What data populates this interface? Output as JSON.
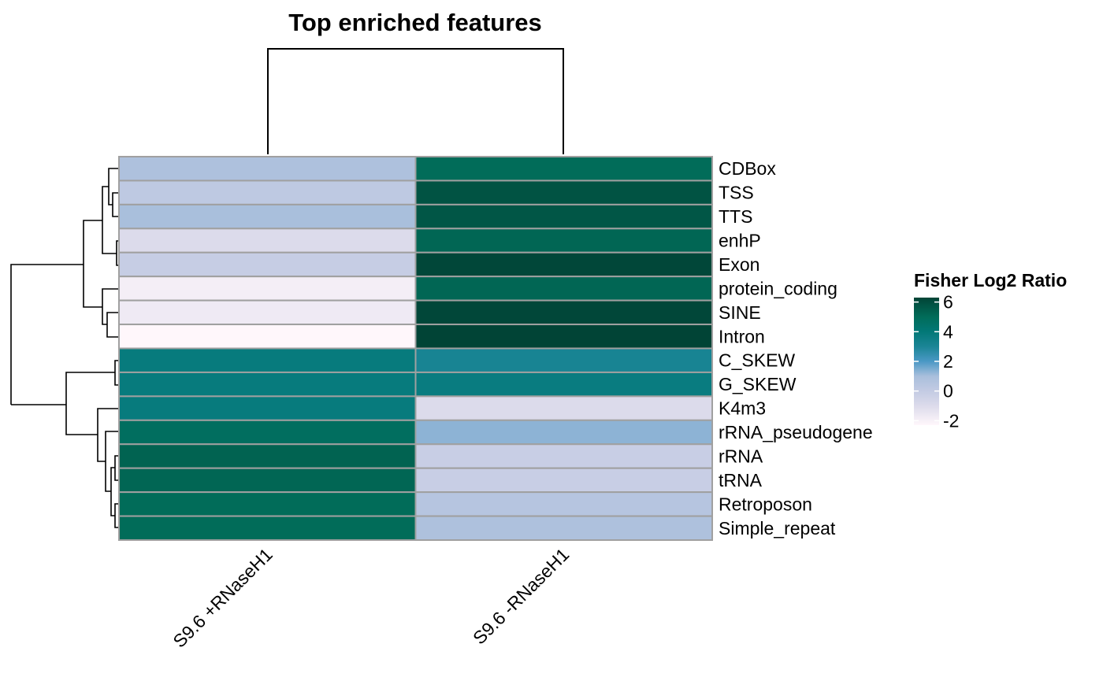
{
  "chart_data": {
    "type": "heatmap",
    "title": "Top enriched features",
    "columns": [
      "S9.6 +RNaseH1",
      "S9.6 -RNaseH1"
    ],
    "rows": [
      "CDBox",
      "TSS",
      "TTS",
      "enhP",
      "Exon",
      "protein_coding",
      "SINE",
      "Intron",
      "C_SKEW",
      "G_SKEW",
      "K4m3",
      "rRNA_pseudogene",
      "rRNA",
      "tRNA",
      "Retroposon",
      "Simple_repeat"
    ],
    "values": [
      [
        0.8,
        5.0
      ],
      [
        0.2,
        5.8
      ],
      [
        1.0,
        5.7
      ],
      [
        -1.0,
        5.2
      ],
      [
        -0.1,
        6.2
      ],
      [
        -1.9,
        5.2
      ],
      [
        -1.7,
        6.2
      ],
      [
        -2.3,
        6.3
      ],
      [
        3.8,
        3.1
      ],
      [
        3.8,
        3.7
      ],
      [
        3.8,
        -1.0
      ],
      [
        4.8,
        1.3
      ],
      [
        5.3,
        -0.2
      ],
      [
        5.2,
        -0.2
      ],
      [
        5.0,
        0.5
      ],
      [
        5.0,
        0.8
      ]
    ],
    "legend": {
      "title": "Fisher Log2 Ratio",
      "ticks": [
        "6",
        "4",
        "2",
        "0",
        "-2"
      ],
      "stops": [
        {
          "value": -2.3,
          "color": "#fff7fb"
        },
        {
          "value": -1.0,
          "color": "#dcdbeb"
        },
        {
          "value": 0.0,
          "color": "#c3cbe3"
        },
        {
          "value": 1.0,
          "color": "#a9bfdc"
        },
        {
          "value": 2.0,
          "color": "#4a98c5"
        },
        {
          "value": 3.0,
          "color": "#1b8596"
        },
        {
          "value": 4.0,
          "color": "#027877"
        },
        {
          "value": 5.0,
          "color": "#016c59"
        },
        {
          "value": 6.3,
          "color": "#014436"
        }
      ],
      "min": -2.3,
      "max": 6.3,
      "placement": "right"
    },
    "grid_color": "#a0a0a0",
    "dendrogram_color": "#000000"
  }
}
